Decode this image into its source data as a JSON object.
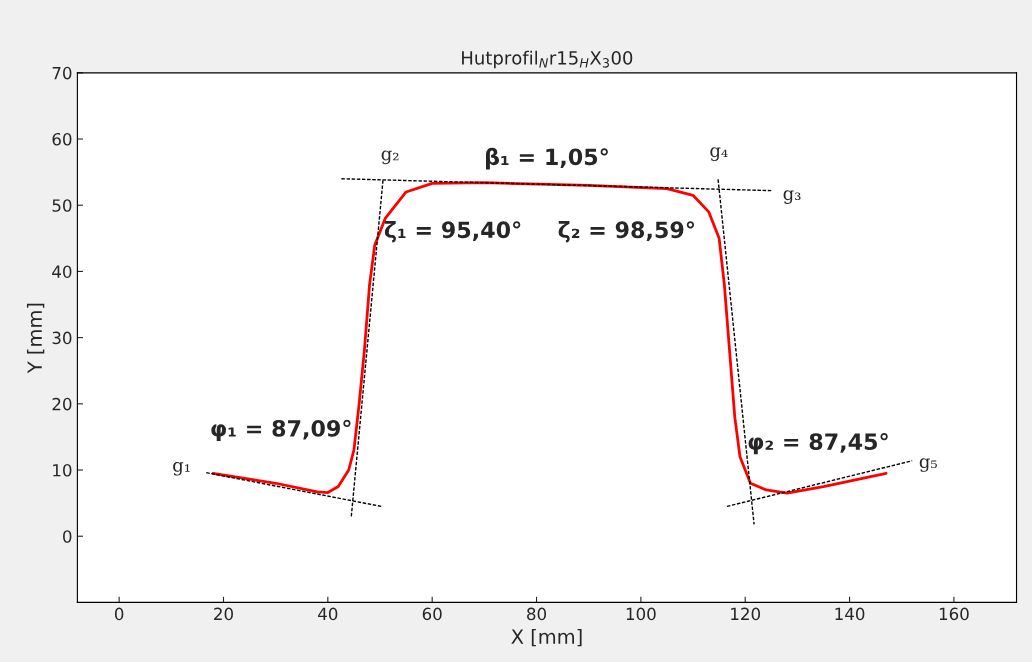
{
  "chart_data": {
    "type": "line",
    "title": "Hutprofil$_{N}$r15$_{H}$X$_{3}$00",
    "xlabel": "X [mm]",
    "ylabel": "Y [mm]",
    "xlim": [
      -8,
      172
    ],
    "ylim": [
      -10,
      70
    ],
    "xticks": [
      0,
      20,
      40,
      60,
      80,
      100,
      120,
      140,
      160
    ],
    "yticks": [
      0,
      10,
      20,
      30,
      40,
      50,
      60,
      70
    ],
    "grid": false,
    "legend": false,
    "series": [
      {
        "color": "#ff0000",
        "line_style": "solid",
        "x": [
          18,
          30,
          38,
          40,
          42,
          44,
          45,
          46,
          47,
          48,
          49,
          51,
          55,
          60,
          70,
          90,
          105,
          110,
          113,
          115,
          116,
          117,
          118,
          119,
          121,
          124,
          128,
          135,
          147
        ],
        "values": [
          9.5,
          8,
          6.7,
          6.6,
          7.5,
          10,
          13,
          20,
          28,
          38,
          44,
          48,
          52,
          53.3,
          53.4,
          53,
          52.5,
          51.5,
          49,
          45,
          38,
          28,
          18,
          12,
          8,
          7,
          6.5,
          7.5,
          9.5
        ]
      },
      {
        "color": "#000000",
        "line_style": "dashed",
        "x": [
          16.7,
          50.3
        ],
        "values": [
          9.6,
          4.5
        ]
      },
      {
        "color": "#000000",
        "line_style": "dashed",
        "x": [
          44.5,
          50.6
        ],
        "values": [
          3,
          54
        ]
      },
      {
        "color": "#000000",
        "line_style": "dashed",
        "x": [
          42.6,
          125.1
        ],
        "values": [
          54,
          52.2
        ]
      },
      {
        "color": "#000000",
        "line_style": "dashed",
        "x": [
          114.8,
          121.7
        ],
        "values": [
          53.9,
          1.8
        ]
      },
      {
        "color": "#000000",
        "line_style": "dashed",
        "x": [
          116.5,
          152
        ],
        "values": [
          4.5,
          11.4
        ]
      }
    ],
    "annotations": [
      "g₁",
      "g₂",
      "g₃",
      "g₄",
      "g₅",
      "β₁ = 1,05°",
      "ζ₁ = 95,40°",
      "ζ₂ = 98,59°",
      "φ₁ = 87,09°",
      "φ₂ = 87,45°"
    ]
  }
}
